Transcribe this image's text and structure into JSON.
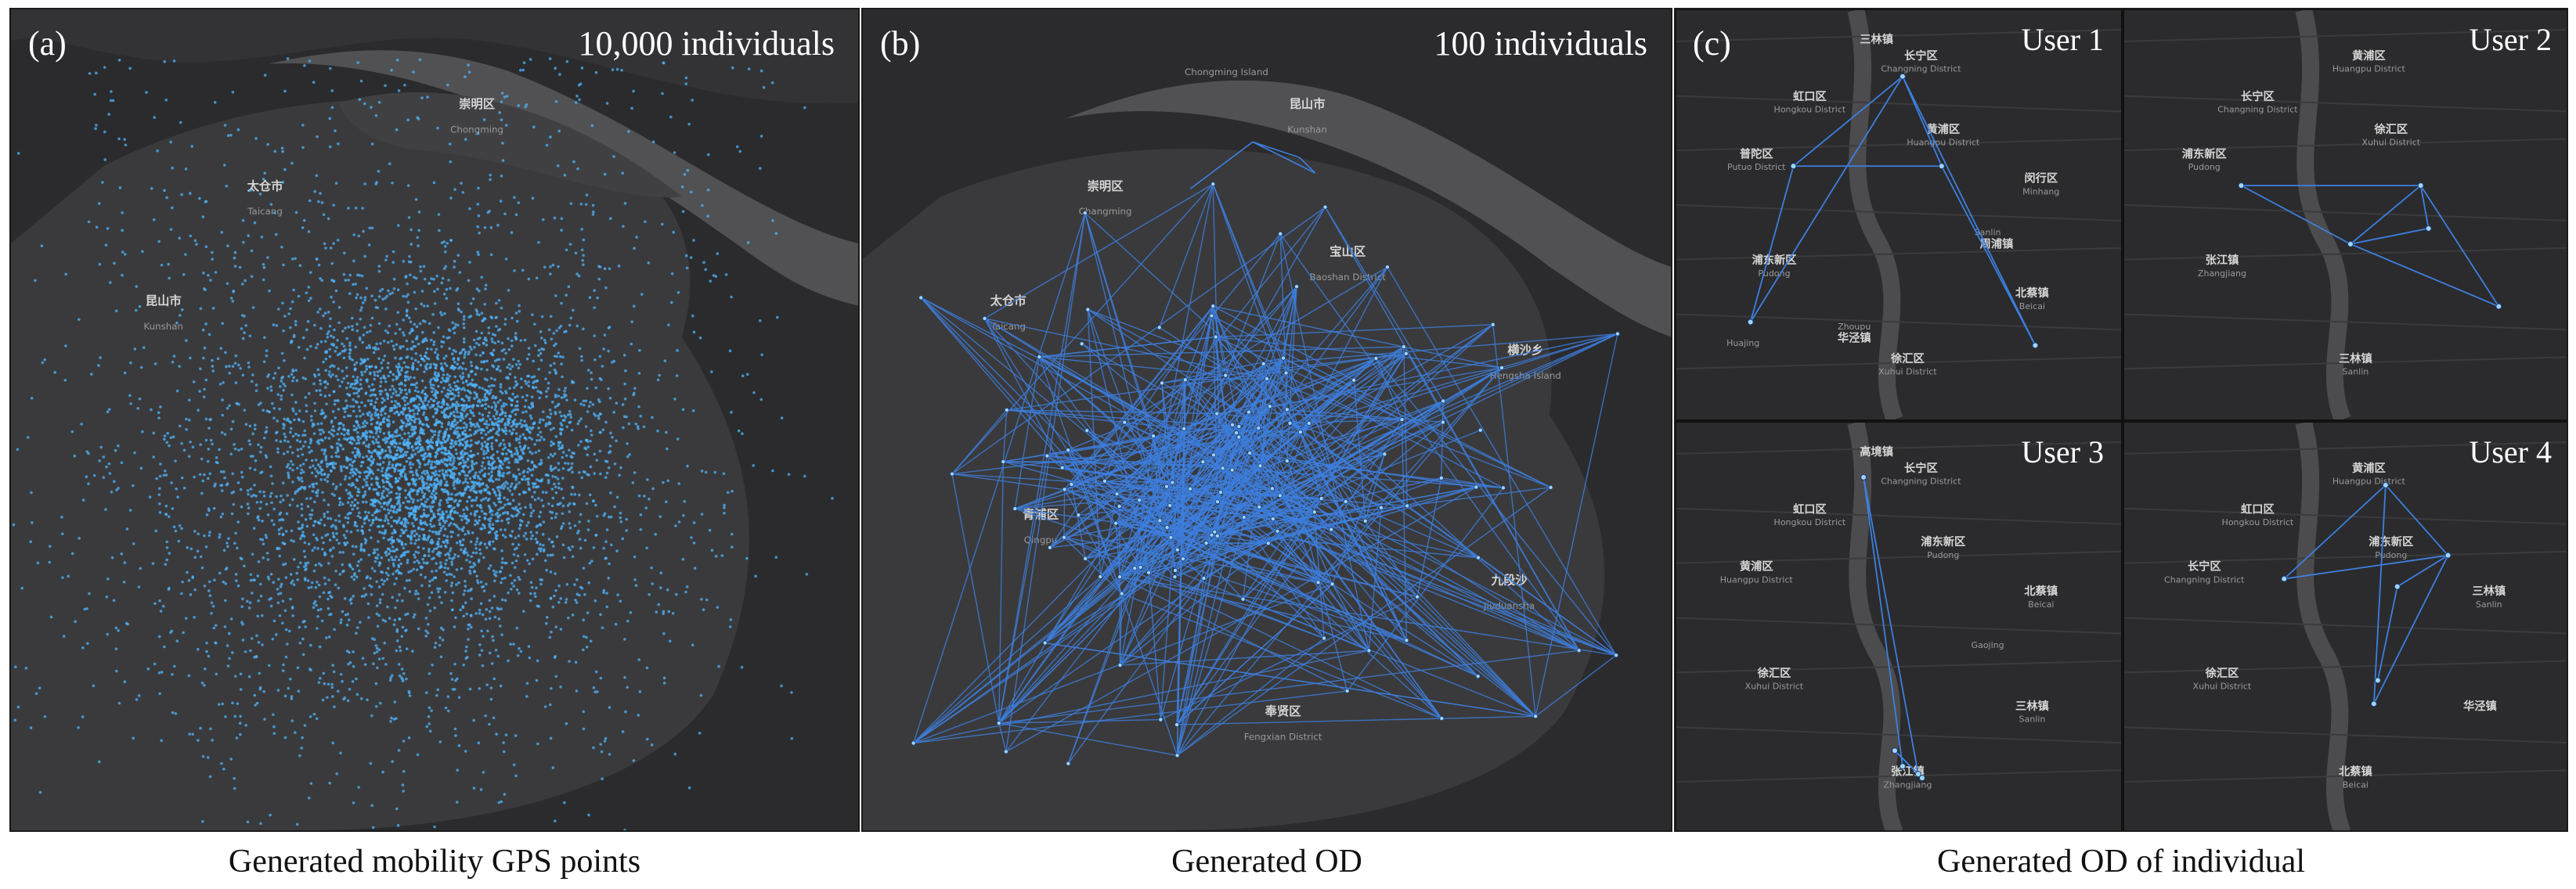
{
  "panels": [
    {
      "tag": "(a)",
      "title": "10,000 individuals",
      "caption": "Generated mobility GPS points"
    },
    {
      "tag": "(b)",
      "title": "100 individuals",
      "caption": "Generated OD"
    },
    {
      "tag": "(c)",
      "title": "",
      "caption": "Generated OD of individual"
    }
  ],
  "users": [
    "User 1",
    "User 2",
    "User 3",
    "User 4"
  ],
  "map_labels": {
    "a": [
      "太仓市",
      "Taicang",
      "昆山市",
      "Kunshan",
      "崇明区",
      "Chongming"
    ],
    "b": [
      "崇明区",
      "Changming",
      "太仓市",
      "Taicang",
      "昆山市",
      "Kunshan",
      "宝山区",
      "Baoshan District",
      "青浦区",
      "Qingpu",
      "奉贤区",
      "Fengxian District",
      "横沙乡",
      "Hengsha Island",
      "九段沙",
      "Jiuduansha",
      "Chongming Island"
    ],
    "u1": [
      "虹口区",
      "Hongkou District",
      "普陀区",
      "Putuo District",
      "长宁区",
      "Changning District",
      "黄浦区",
      "Huangpu District",
      "浦东新区",
      "Pudong",
      "徐汇区",
      "Xuhui District",
      "闵行区",
      "Minhang",
      "北蔡镇",
      "Beicai",
      "三林镇",
      "Sanlin",
      "周浦镇",
      "Zhoupu",
      "华泾镇",
      "Huajing"
    ],
    "u2": [
      "长宁区",
      "Changning District",
      "浦东新区",
      "Pudong",
      "黄浦区",
      "Huangpu District",
      "徐汇区",
      "Xuhui District",
      "张江镇",
      "Zhangjiang",
      "三林镇",
      "Sanlin"
    ],
    "u3": [
      "虹口区",
      "Hongkou District",
      "黄浦区",
      "Huangpu District",
      "长宁区",
      "Changning District",
      "浦东新区",
      "Pudong",
      "徐汇区",
      "Xuhui District",
      "张江镇",
      "Zhangjiang",
      "北蔡镇",
      "Beicai",
      "三林镇",
      "Sanlin",
      "高境镇",
      "Gaojing"
    ],
    "u4": [
      "虹口区",
      "Hongkou District",
      "长宁区",
      "Changning District",
      "黄浦区",
      "Huangpu District",
      "浦东新区",
      "Pudong",
      "徐汇区",
      "Xuhui District",
      "北蔡镇",
      "Beicai",
      "三林镇",
      "Sanlin",
      "华泾镇"
    ]
  },
  "colors": {
    "background": "#2b2b2d",
    "land": "#3a3a3c",
    "water": "#555558",
    "point": "#4fb6ff",
    "od_line": "#3d7fe0",
    "node": "#9fd4ff"
  }
}
